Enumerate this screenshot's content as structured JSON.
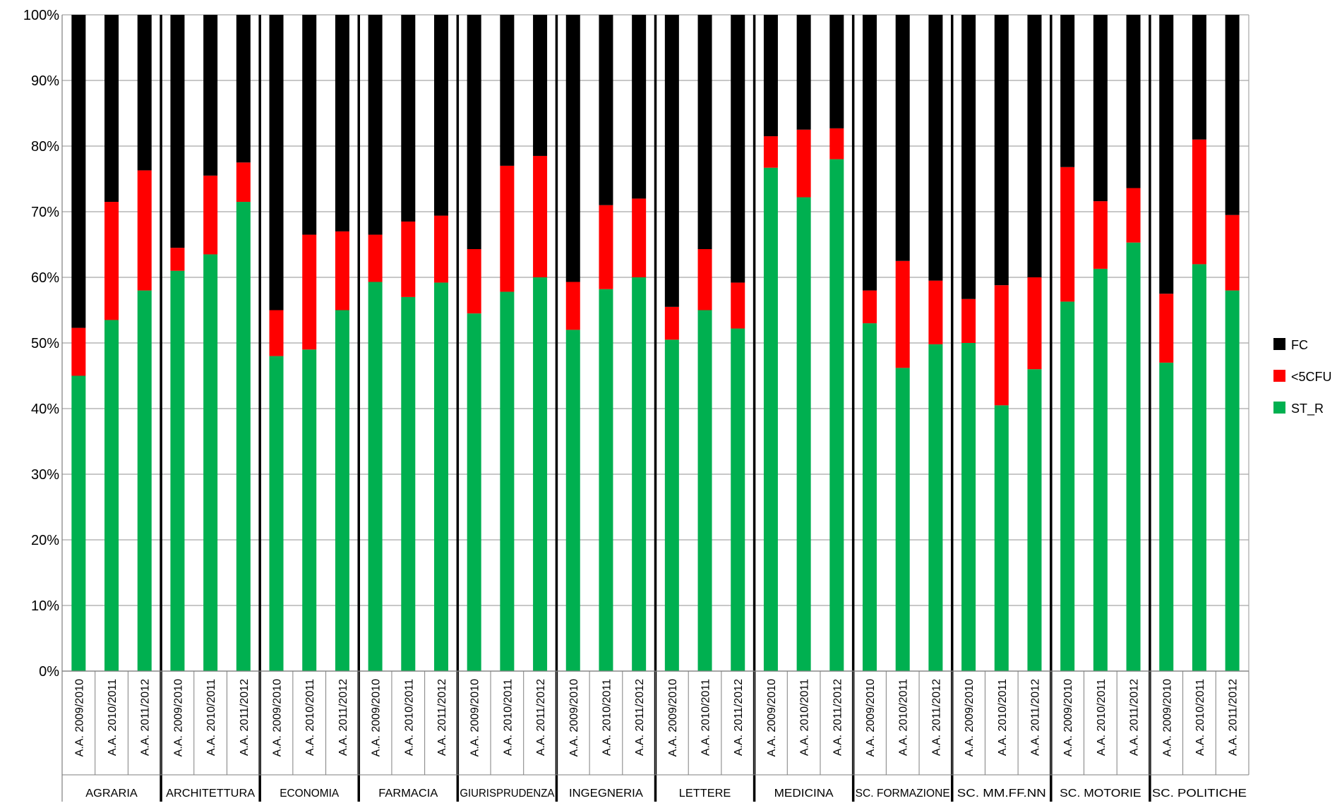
{
  "chart_data": {
    "type": "bar",
    "stacked": true,
    "percent": true,
    "ylim": [
      0,
      100
    ],
    "yticks": [
      "0%",
      "10%",
      "20%",
      "30%",
      "40%",
      "50%",
      "60%",
      "70%",
      "80%",
      "90%",
      "100%"
    ],
    "grid": true,
    "legend_position": "right",
    "categories": [
      "A.A. 2009/2010",
      "A.A. 2010/2011",
      "A.A. 2011/2012",
      "A.A. 2009/2010",
      "A.A. 2010/2011",
      "A.A. 2011/2012",
      "A.A. 2009/2010",
      "A.A. 2010/2011",
      "A.A. 2011/2012",
      "A.A. 2009/2010",
      "A.A. 2010/2011",
      "A.A. 2011/2012",
      "A.A. 2009/2010",
      "A.A. 2010/2011",
      "A.A. 2011/2012",
      "A.A. 2009/2010",
      "A.A. 2010/2011",
      "A.A. 2011/2012",
      "A.A. 2009/2010",
      "A.A. 2010/2011",
      "A.A. 2011/2012",
      "A.A. 2009/2010",
      "A.A. 2010/2011",
      "A.A. 2011/2012",
      "A.A. 2009/2010",
      "A.A. 2010/2011",
      "A.A. 2011/2012",
      "A.A. 2009/2010",
      "A.A. 2010/2011",
      "A.A. 2011/2012",
      "A.A. 2009/2010",
      "A.A. 2010/2011",
      "A.A. 2011/2012",
      "A.A. 2009/2010",
      "A.A. 2010/2011",
      "A.A. 2011/2012"
    ],
    "groups": [
      "AGRARIA",
      "ARCHITETTURA",
      "ECONOMIA",
      "FARMACIA",
      "GIURISPRUDENZA",
      "INGEGNERIA",
      "LETTERE",
      "MEDICINA",
      "SC. FORMAZIONE",
      "SC. MM.FF.NN",
      "SC. MOTORIE",
      "SC. POLITICHE"
    ],
    "series": [
      {
        "name": "ST_R",
        "color": "#00B050",
        "values": [
          45,
          53.5,
          58,
          61,
          63.5,
          71.5,
          48,
          49,
          55,
          59.3,
          57,
          59.2,
          54.5,
          57.8,
          60,
          52,
          58.2,
          60,
          50.5,
          55,
          52.2,
          76.7,
          72.2,
          78,
          53,
          46.2,
          49.8,
          50,
          40.5,
          46,
          56.3,
          61.3,
          65.3,
          47,
          62,
          58
        ]
      },
      {
        "name": "<5CFU",
        "color": "#FF0000",
        "values": [
          7.3,
          18,
          18.3,
          3.5,
          12,
          6,
          7,
          17.5,
          12,
          7.2,
          11.5,
          10.2,
          9.8,
          19.2,
          18.5,
          7.3,
          12.8,
          12,
          5,
          9.3,
          7,
          4.8,
          10.3,
          4.7,
          5,
          16.3,
          9.7,
          6.7,
          18.3,
          14,
          20.5,
          10.3,
          8.3,
          10.5,
          19,
          11.5
        ]
      },
      {
        "name": "FC",
        "color": "#000000",
        "values": [
          47.7,
          28.5,
          23.7,
          35.5,
          24.5,
          22.5,
          45,
          33.5,
          33,
          33.5,
          31.5,
          30.6,
          35.7,
          23,
          21.5,
          40.7,
          29,
          28,
          44.5,
          35.7,
          40.8,
          18.5,
          17.5,
          17.3,
          42,
          37.5,
          40.5,
          43.3,
          41.2,
          40,
          23.2,
          28.4,
          26.4,
          42.5,
          19,
          30.5
        ]
      }
    ]
  }
}
